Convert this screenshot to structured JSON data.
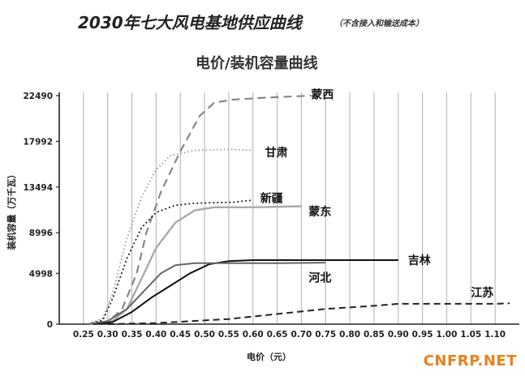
{
  "header": {
    "title": "2030年七大风电基地供应曲线",
    "title_note": "（不含接入和输送成本）",
    "subtitle": "电价/装机容量曲线"
  },
  "watermark": "CNFRP.NET",
  "chart_data": {
    "type": "line",
    "xlabel": "电价（元）",
    "ylabel": "装机容量（万千瓦）",
    "xlim": [
      0.2,
      1.15
    ],
    "ylim": [
      0,
      22490
    ],
    "x_ticks": [
      "0.25",
      "0.30",
      "0.35",
      "0.40",
      "0.45",
      "0.50",
      "0.55",
      "0.60",
      "0.65",
      "0.70",
      "0.75",
      "0.80",
      "0.85",
      "0.90",
      "0.95",
      "1.00",
      "1.05",
      "1.10"
    ],
    "y_ticks": [
      "0",
      "4998",
      "8996",
      "13494",
      "17992",
      "22490"
    ],
    "grid": "vertical",
    "series": [
      {
        "name": "蒙西",
        "color": "#888888",
        "dash": "10,6",
        "width": 2.2,
        "points": [
          [
            0.26,
            0
          ],
          [
            0.3,
            200
          ],
          [
            0.33,
            1500
          ],
          [
            0.36,
            5000
          ],
          [
            0.38,
            9000
          ],
          [
            0.41,
            13000
          ],
          [
            0.45,
            17000
          ],
          [
            0.49,
            20500
          ],
          [
            0.52,
            21800
          ],
          [
            0.56,
            22100
          ],
          [
            0.63,
            22300
          ],
          [
            0.72,
            22490
          ]
        ]
      },
      {
        "name": "甘肃",
        "color": "#999999",
        "dash": "1.5,3",
        "width": 1.8,
        "points": [
          [
            0.26,
            0
          ],
          [
            0.29,
            600
          ],
          [
            0.31,
            3000
          ],
          [
            0.34,
            8500
          ],
          [
            0.37,
            12500
          ],
          [
            0.4,
            15200
          ],
          [
            0.43,
            16600
          ],
          [
            0.48,
            17100
          ],
          [
            0.55,
            17200
          ],
          [
            0.6,
            17100
          ]
        ]
      },
      {
        "name": "新疆",
        "color": "#222222",
        "dash": "2,3",
        "width": 1.8,
        "points": [
          [
            0.26,
            0
          ],
          [
            0.29,
            400
          ],
          [
            0.31,
            2500
          ],
          [
            0.34,
            6500
          ],
          [
            0.37,
            9500
          ],
          [
            0.4,
            11000
          ],
          [
            0.44,
            11700
          ],
          [
            0.48,
            11900
          ],
          [
            0.56,
            12000
          ],
          [
            0.6,
            12200
          ]
        ]
      },
      {
        "name": "蒙东",
        "color": "#aaaaaa",
        "dash": "",
        "width": 2.4,
        "points": [
          [
            0.26,
            0
          ],
          [
            0.31,
            300
          ],
          [
            0.34,
            1500
          ],
          [
            0.37,
            4500
          ],
          [
            0.4,
            7500
          ],
          [
            0.44,
            10000
          ],
          [
            0.48,
            11200
          ],
          [
            0.52,
            11500
          ],
          [
            0.6,
            11500
          ],
          [
            0.7,
            11600
          ]
        ]
      },
      {
        "name": "吉林",
        "color": "#111111",
        "dash": "",
        "width": 2.0,
        "points": [
          [
            0.27,
            0
          ],
          [
            0.31,
            200
          ],
          [
            0.35,
            1200
          ],
          [
            0.39,
            2600
          ],
          [
            0.43,
            3800
          ],
          [
            0.47,
            5000
          ],
          [
            0.51,
            5900
          ],
          [
            0.55,
            6200
          ],
          [
            0.6,
            6300
          ],
          [
            0.75,
            6300
          ],
          [
            0.9,
            6300
          ]
        ]
      },
      {
        "name": "河北",
        "color": "#666666",
        "dash": "",
        "width": 2.0,
        "points": [
          [
            0.26,
            0
          ],
          [
            0.3,
            300
          ],
          [
            0.34,
            1500
          ],
          [
            0.38,
            3500
          ],
          [
            0.41,
            5000
          ],
          [
            0.44,
            5800
          ],
          [
            0.48,
            6000
          ],
          [
            0.55,
            6000
          ],
          [
            0.65,
            6000
          ],
          [
            0.75,
            6050
          ]
        ]
      },
      {
        "name": "江苏",
        "color": "#222222",
        "dash": "8,5",
        "width": 2.0,
        "points": [
          [
            0.3,
            0
          ],
          [
            0.4,
            100
          ],
          [
            0.55,
            500
          ],
          [
            0.65,
            1000
          ],
          [
            0.75,
            1500
          ],
          [
            0.85,
            1800
          ],
          [
            0.9,
            2000
          ],
          [
            1.0,
            2000
          ],
          [
            1.1,
            2000
          ],
          [
            1.13,
            2050
          ]
        ]
      }
    ],
    "labels": [
      {
        "text": "蒙西",
        "x": 0.72,
        "y": 22600
      },
      {
        "text": "甘肃",
        "x": 0.625,
        "y": 16900
      },
      {
        "text": "新疆",
        "x": 0.615,
        "y": 12400
      },
      {
        "text": "蒙东",
        "x": 0.715,
        "y": 11100
      },
      {
        "text": "吉林",
        "x": 0.92,
        "y": 6300
      },
      {
        "text": "河北",
        "x": 0.715,
        "y": 4600
      },
      {
        "text": "江苏",
        "x": 1.05,
        "y": 3100
      }
    ]
  }
}
